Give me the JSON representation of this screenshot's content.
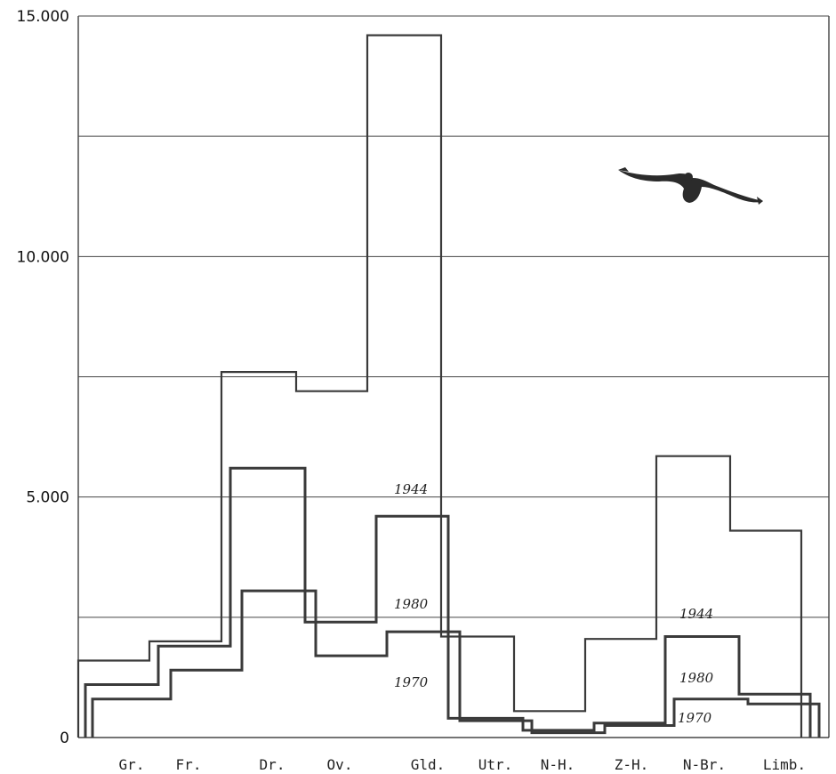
{
  "chart_data": {
    "type": "line",
    "step": true,
    "title": "",
    "xlabel": "",
    "ylabel": "",
    "ylim": [
      0,
      15000
    ],
    "grid": true,
    "y_ticks": [
      {
        "value": 0,
        "label": "0"
      },
      {
        "value": 5000,
        "label": "5.000"
      },
      {
        "value": 10000,
        "label": "10.000"
      },
      {
        "value": 15000,
        "label": "15.000"
      }
    ],
    "categories": [
      "Gr.",
      "Fr.",
      "Dr.",
      "Ov.",
      "Gld.",
      "Utr.",
      "N-H.",
      "Z-H.",
      "N-Br.",
      "Limb."
    ],
    "series": [
      {
        "name": "1944",
        "values": [
          1600,
          2000,
          7600,
          7200,
          14600,
          2100,
          550,
          2050,
          5850,
          4300
        ]
      },
      {
        "name": "1980",
        "values": [
          1100,
          1900,
          5600,
          2400,
          4600,
          400,
          150,
          300,
          2100,
          900
        ]
      },
      {
        "name": "1970",
        "values": [
          800,
          1400,
          3050,
          1700,
          2200,
          350,
          100,
          250,
          800,
          700
        ]
      }
    ],
    "series_labels": [
      {
        "series": "1944",
        "text": "1944",
        "near_category": "Gld."
      },
      {
        "series": "1980",
        "text": "1980",
        "near_category": "Gld."
      },
      {
        "series": "1970",
        "text": "1970",
        "near_category": "Gld."
      },
      {
        "series": "1944",
        "text": "1944",
        "near_category": "N-Br."
      },
      {
        "series": "1980",
        "text": "1980",
        "near_category": "N-Br."
      },
      {
        "series": "1970",
        "text": "1970",
        "near_category": "N-Br."
      }
    ]
  },
  "bird_icon": "bird-of-prey-silhouette"
}
